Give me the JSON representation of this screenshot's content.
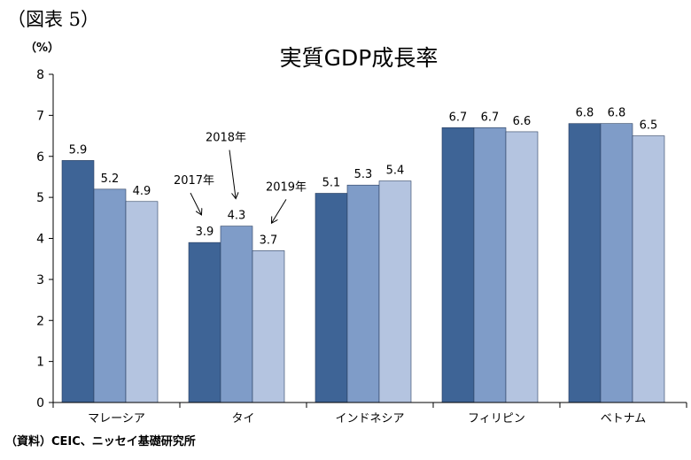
{
  "figure_label": "（図表 5）",
  "source_note": "（資料）CEIC、ニッセイ基礎研究所",
  "chart_data": {
    "type": "bar",
    "title": "実質GDP成長率",
    "ylabel": "（%）",
    "xlabel": "",
    "ylim": [
      0,
      8
    ],
    "yticks": [
      0,
      1,
      2,
      3,
      4,
      5,
      6,
      7,
      8
    ],
    "grid": false,
    "legend": "none",
    "categories": [
      "マレーシア",
      "タイ",
      "インドネシア",
      "フィリピン",
      "ベトナム"
    ],
    "series": [
      {
        "name": "2017年",
        "color": "#3e6496",
        "values": [
          5.9,
          3.9,
          5.1,
          6.7,
          6.8
        ]
      },
      {
        "name": "2018年",
        "color": "#7f9cc8",
        "values": [
          5.2,
          4.3,
          5.3,
          6.7,
          6.8
        ]
      },
      {
        "name": "2019年",
        "color": "#b4c4e0",
        "values": [
          4.9,
          3.7,
          5.4,
          6.6,
          6.5
        ]
      }
    ],
    "annotation_category_index": 1
  }
}
